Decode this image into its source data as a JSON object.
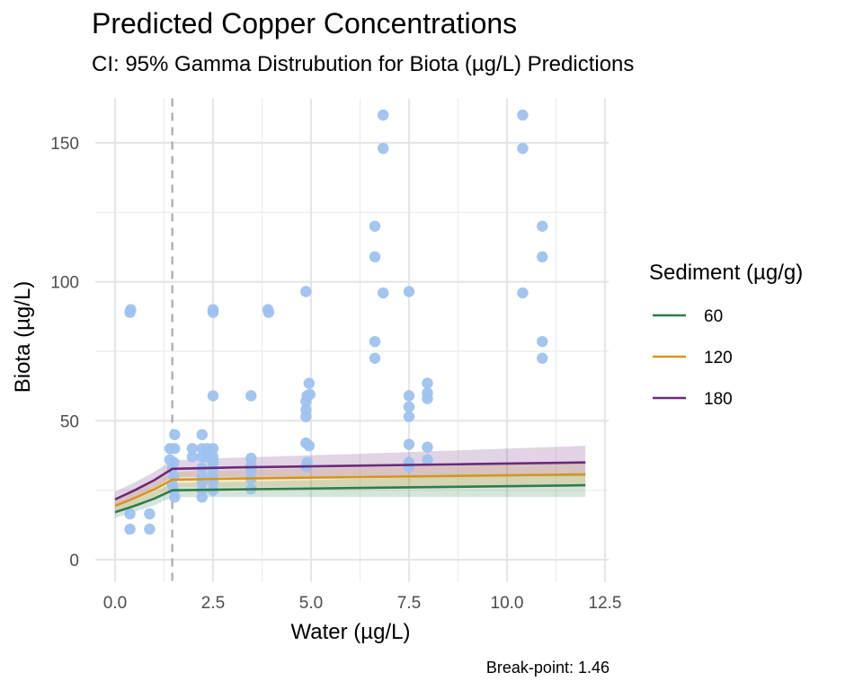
{
  "chart_data": {
    "type": "scatter",
    "title": "Predicted Copper Concentrations",
    "subtitle": "CI: 95% Gamma Distrubution for Biota (µg/L) Predictions",
    "xlabel": "Water (µg/L)",
    "ylabel": "Biota (µg/L)",
    "caption": "Break-point: 1.46",
    "xlim": [
      -0.5,
      12.6
    ],
    "ylim": [
      -8,
      166
    ],
    "x_ticks": [
      0.0,
      2.5,
      5.0,
      7.5,
      10.0,
      12.5
    ],
    "x_tick_labels": [
      "0.0",
      "2.5",
      "5.0",
      "7.5",
      "10.0",
      "12.5"
    ],
    "y_ticks": [
      0,
      50,
      100,
      150
    ],
    "y_tick_labels": [
      "0",
      "50",
      "100",
      "150"
    ],
    "grid": true,
    "breakpoint": 1.46,
    "point_color": "#9ec2ee",
    "points": [
      [
        0.38,
        89
      ],
      [
        0.4,
        90
      ],
      [
        0.38,
        16.5
      ],
      [
        0.38,
        11
      ],
      [
        0.88,
        16.5
      ],
      [
        0.88,
        11
      ],
      [
        1.4,
        40
      ],
      [
        1.52,
        45
      ],
      [
        1.52,
        40
      ],
      [
        1.4,
        36
      ],
      [
        1.5,
        35
      ],
      [
        1.46,
        33
      ],
      [
        1.5,
        30
      ],
      [
        1.46,
        27
      ],
      [
        1.5,
        25
      ],
      [
        1.52,
        22.5
      ],
      [
        1.97,
        40
      ],
      [
        1.97,
        37
      ],
      [
        2.22,
        45
      ],
      [
        2.22,
        40
      ],
      [
        2.22,
        37
      ],
      [
        2.22,
        33
      ],
      [
        2.22,
        30
      ],
      [
        2.22,
        28
      ],
      [
        2.22,
        25
      ],
      [
        2.22,
        22.5
      ],
      [
        2.35,
        40
      ],
      [
        2.35,
        37
      ],
      [
        2.5,
        90
      ],
      [
        2.5,
        89
      ],
      [
        2.5,
        59
      ],
      [
        2.5,
        40
      ],
      [
        2.5,
        37
      ],
      [
        2.5,
        35
      ],
      [
        2.5,
        33
      ],
      [
        2.5,
        30
      ],
      [
        2.5,
        28
      ],
      [
        2.5,
        25
      ],
      [
        3.47,
        59
      ],
      [
        3.47,
        36.5
      ],
      [
        3.47,
        34
      ],
      [
        3.47,
        32
      ],
      [
        3.47,
        29
      ],
      [
        3.47,
        25.5
      ],
      [
        3.9,
        90
      ],
      [
        3.92,
        89
      ],
      [
        4.87,
        96.5
      ],
      [
        4.9,
        59
      ],
      [
        4.87,
        57
      ],
      [
        4.87,
        54
      ],
      [
        4.87,
        51.5
      ],
      [
        4.87,
        42
      ],
      [
        4.95,
        41
      ],
      [
        4.9,
        35
      ],
      [
        4.87,
        33.5
      ],
      [
        4.95,
        63.5
      ],
      [
        4.97,
        59.5
      ],
      [
        6.63,
        120
      ],
      [
        6.63,
        109
      ],
      [
        6.63,
        78.5
      ],
      [
        6.63,
        72.5
      ],
      [
        6.84,
        160
      ],
      [
        6.84,
        148
      ],
      [
        6.84,
        96
      ],
      [
        7.5,
        96.5
      ],
      [
        7.5,
        59
      ],
      [
        7.5,
        55
      ],
      [
        7.5,
        51.5
      ],
      [
        7.5,
        41.5
      ],
      [
        7.5,
        35
      ],
      [
        7.5,
        33.5
      ],
      [
        7.97,
        63.5
      ],
      [
        7.97,
        60
      ],
      [
        7.97,
        58
      ],
      [
        7.97,
        40.5
      ],
      [
        7.97,
        36
      ],
      [
        10.4,
        160
      ],
      [
        10.4,
        148
      ],
      [
        10.4,
        96
      ],
      [
        10.9,
        120
      ],
      [
        10.9,
        109
      ],
      [
        10.9,
        78.5
      ],
      [
        10.9,
        72.5
      ]
    ],
    "series": [
      {
        "name": "60",
        "color": "#2e7d4a",
        "x": [
          0,
          0.5,
          1.0,
          1.46,
          3,
          6,
          9,
          12
        ],
        "values": [
          17.1,
          19.4,
          22.0,
          25.0,
          25.3,
          25.8,
          26.3,
          26.8
        ],
        "ci_lower": [
          15.0,
          17.2,
          19.6,
          22.5,
          22.6,
          22.6,
          22.6,
          22.6
        ],
        "ci_upper": [
          19.4,
          21.7,
          24.5,
          27.6,
          28.0,
          29.0,
          30.0,
          31.0
        ]
      },
      {
        "name": "120",
        "color": "#d4961e",
        "x": [
          0,
          0.5,
          1.0,
          1.46,
          3,
          6,
          9,
          12
        ],
        "values": [
          19.4,
          22.2,
          25.3,
          28.8,
          29.2,
          29.7,
          30.2,
          30.7
        ],
        "ci_lower": [
          17.2,
          19.9,
          22.8,
          26.1,
          26.2,
          26.3,
          26.4,
          26.5
        ],
        "ci_upper": [
          21.8,
          24.6,
          27.9,
          31.6,
          32.2,
          33.1,
          34.0,
          35.0
        ]
      },
      {
        "name": "180",
        "color": "#6b2a7a",
        "x": [
          0,
          0.5,
          1.0,
          1.46,
          3,
          6,
          9,
          12
        ],
        "values": [
          21.7,
          25.0,
          28.6,
          32.7,
          33.2,
          33.8,
          34.4,
          35.0
        ],
        "ci_lower": [
          19.2,
          22.4,
          25.8,
          29.7,
          29.8,
          29.9,
          30.0,
          30.1
        ],
        "ci_upper": [
          24.5,
          27.8,
          31.6,
          35.8,
          36.7,
          38.0,
          39.5,
          41.0
        ]
      }
    ],
    "legend": {
      "title": "Sediment (µg/g)",
      "position": "right",
      "entries": [
        "60",
        "120",
        "180"
      ]
    }
  }
}
